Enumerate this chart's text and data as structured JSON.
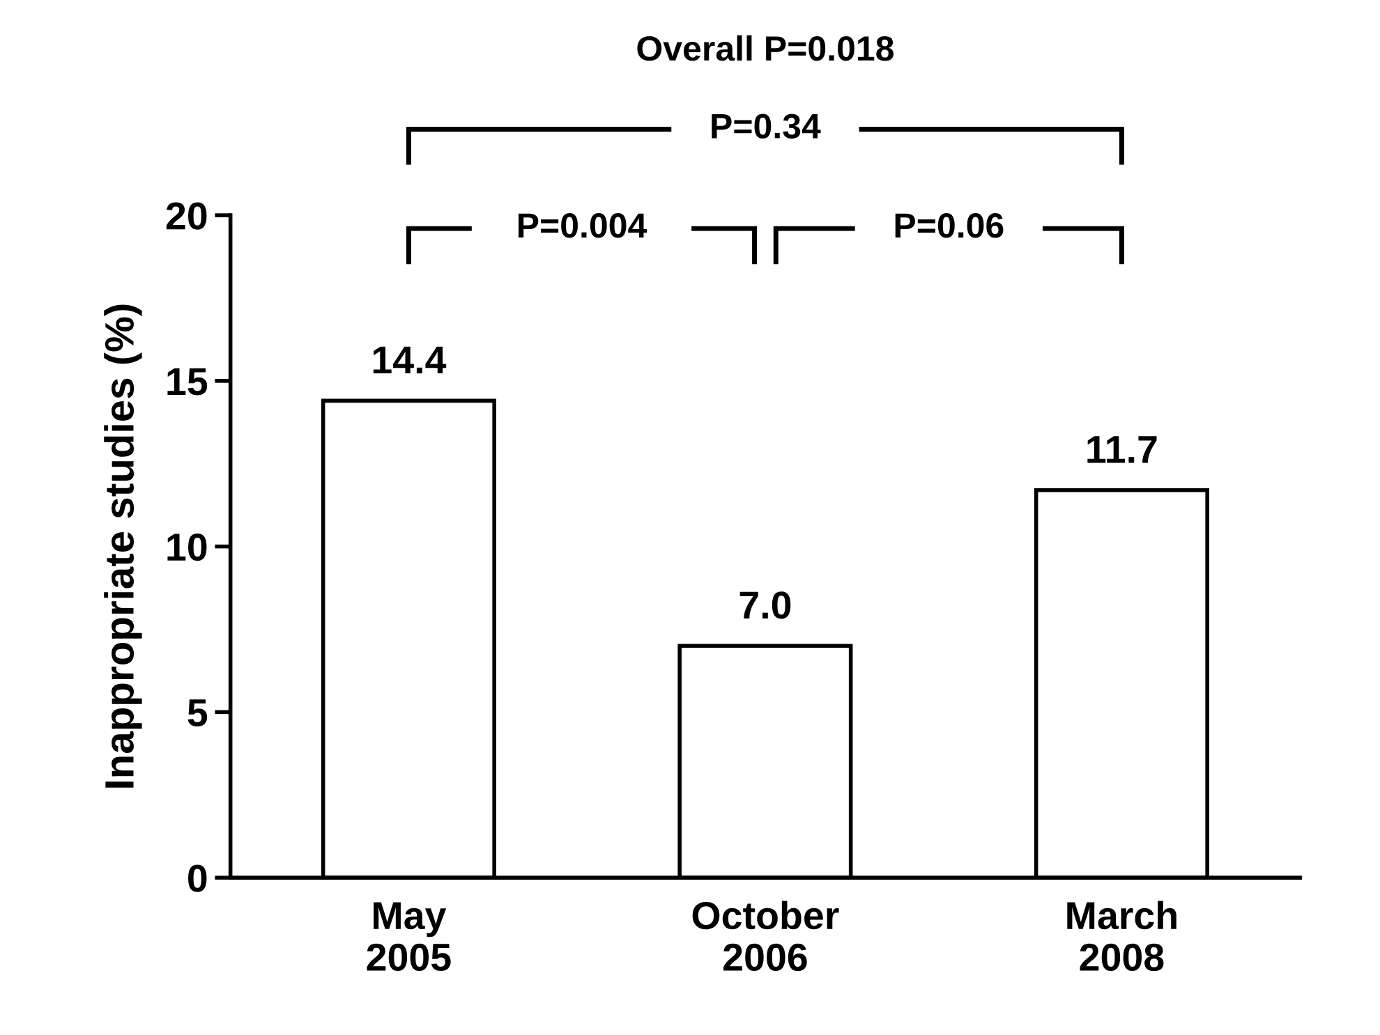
{
  "chart_data": {
    "type": "bar",
    "title": "Overall P=0.018",
    "ylabel": "Inappropriate studies (%)",
    "categories": [
      "May\n2005",
      "October\n2006",
      "March\n2008"
    ],
    "values": [
      14.4,
      7.0,
      11.7
    ],
    "value_labels": [
      "14.4",
      "7.0",
      "11.7"
    ],
    "color": "#ffffff",
    "ylim": [
      0,
      20
    ],
    "yticks": [
      0,
      5,
      10,
      15,
      20
    ],
    "grid": false,
    "annotations": [
      "P=0.34",
      "P=0.004",
      "P=0.06"
    ]
  }
}
